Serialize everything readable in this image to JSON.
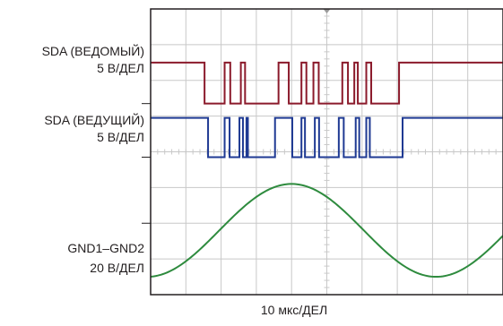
{
  "chart_data": {
    "type": "line",
    "xlabel": "10 мкс/ДЕЛ",
    "grid": true,
    "divisions": {
      "x": 10,
      "y": 8
    },
    "colors": {
      "slave": "#8b1a2b",
      "master": "#1f3a93",
      "gnd": "#2e8b3e",
      "grid": "#c8c8c8",
      "frame": "#231f20"
    },
    "series": [
      {
        "name": "SDA (ВЕДОМЫЙ)",
        "scale": "5 В/ДЕЛ",
        "kind": "digital",
        "high_div": 6.5,
        "low_div": 5.35,
        "low_intervals_div": [
          [
            1.53,
            2.1
          ],
          [
            2.26,
            2.56
          ],
          [
            2.68,
            3.63
          ],
          [
            3.92,
            4.28
          ],
          [
            4.42,
            4.62
          ],
          [
            4.77,
            5.44
          ],
          [
            5.6,
            5.78
          ],
          [
            5.88,
            6.12
          ],
          [
            6.26,
            7.05
          ]
        ]
      },
      {
        "name": "SDA (ВЕДУЩИЙ)",
        "scale": "5 В/ДЕЛ",
        "kind": "digital",
        "high_div": 4.95,
        "low_div": 3.85,
        "low_intervals_div": [
          [
            1.63,
            2.1
          ],
          [
            2.24,
            2.52
          ],
          [
            2.62,
            2.72
          ],
          [
            2.76,
            3.53
          ],
          [
            4.02,
            4.28
          ],
          [
            4.38,
            4.66
          ],
          [
            4.78,
            5.34
          ],
          [
            5.48,
            5.82
          ],
          [
            5.92,
            6.12
          ],
          [
            6.22,
            7.15
          ]
        ]
      },
      {
        "name": "GND1–GND2",
        "scale": "20 В/ДЕЛ",
        "kind": "sine",
        "center_div": 1.8,
        "amplitude_div": 1.3,
        "period_div": 8.2,
        "peak_x_div": 4.0
      }
    ]
  }
}
